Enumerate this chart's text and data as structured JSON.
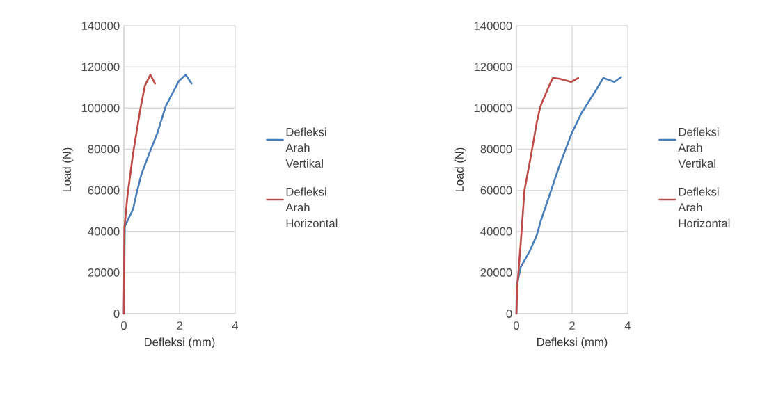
{
  "chart_data": [
    {
      "type": "line",
      "xlabel": "Defleksi (mm)",
      "ylabel": "Load (N)",
      "xlim": [
        0,
        4
      ],
      "xticks": [
        0,
        2,
        4
      ],
      "ylim": [
        0,
        140000
      ],
      "yticks": [
        0,
        20000,
        40000,
        60000,
        80000,
        100000,
        120000,
        140000
      ],
      "grid": true,
      "legend": "right",
      "series": [
        {
          "name": "Defleksi Arah Vertikal",
          "color": "#4a7ebb",
          "x": [
            0,
            0.03,
            0.33,
            0.46,
            0.63,
            0.88,
            1.21,
            1.34,
            1.51,
            1.97,
            2.22,
            2.43
          ],
          "values": [
            0,
            42400,
            50800,
            58800,
            67800,
            76800,
            88100,
            93800,
            101100,
            113000,
            116200,
            111900
          ]
        },
        {
          "name": "Defleksi Arah Horizontal",
          "color": "#be4b48",
          "x": [
            0,
            0.02,
            0.13,
            0.33,
            0.59,
            0.75,
            0.95,
            1.12
          ],
          "values": [
            0,
            41800,
            57600,
            78000,
            99400,
            110700,
            116200,
            111900
          ]
        }
      ]
    },
    {
      "type": "line",
      "xlabel": "Defleksi (mm)",
      "ylabel": "Load (N)",
      "xlim": [
        0,
        4
      ],
      "xticks": [
        0,
        2,
        4
      ],
      "ylim": [
        0,
        140000
      ],
      "yticks": [
        0,
        20000,
        40000,
        60000,
        80000,
        100000,
        120000,
        140000
      ],
      "grid": true,
      "legend": "right",
      "series": [
        {
          "name": "Defleksi Arah Vertikal",
          "color": "#4a7ebb",
          "x": [
            0,
            0.01,
            0.16,
            0.47,
            0.73,
            0.87,
            1.18,
            1.53,
            1.97,
            2.33,
            2.86,
            3.12,
            3.52,
            3.76
          ],
          "values": [
            0,
            13800,
            22800,
            30200,
            38100,
            44900,
            57300,
            71400,
            87200,
            97400,
            108700,
            114600,
            112700,
            115000
          ]
        },
        {
          "name": "Defleksi Arah Horizontal",
          "color": "#be4b48",
          "x": [
            0,
            0.03,
            0.16,
            0.29,
            0.51,
            0.73,
            0.86,
            1.18,
            1.31,
            1.53,
            1.97,
            2.22
          ],
          "values": [
            0,
            12700,
            35300,
            60100,
            75900,
            92900,
            100800,
            111000,
            114600,
            114300,
            112700,
            114600
          ]
        }
      ]
    }
  ]
}
